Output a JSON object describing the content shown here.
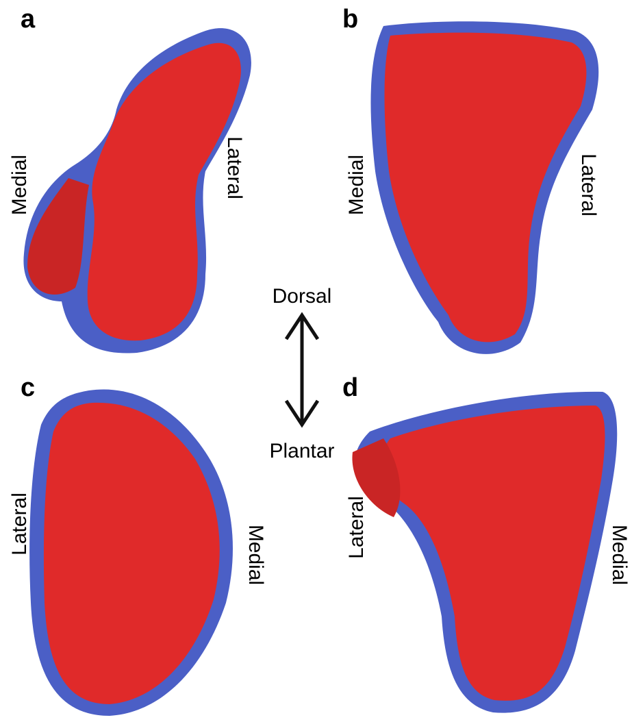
{
  "panels": [
    {
      "label": "a",
      "left_label": "Medial",
      "right_label": "Lateral"
    },
    {
      "label": "b",
      "left_label": "Medial",
      "right_label": "Lateral"
    },
    {
      "label": "c",
      "left_label": "Lateral",
      "right_label": "Medial"
    },
    {
      "label": "d",
      "left_label": "Lateral",
      "right_label": "Medial"
    }
  ],
  "orientation": {
    "top": "Dorsal",
    "bottom": "Plantar"
  }
}
